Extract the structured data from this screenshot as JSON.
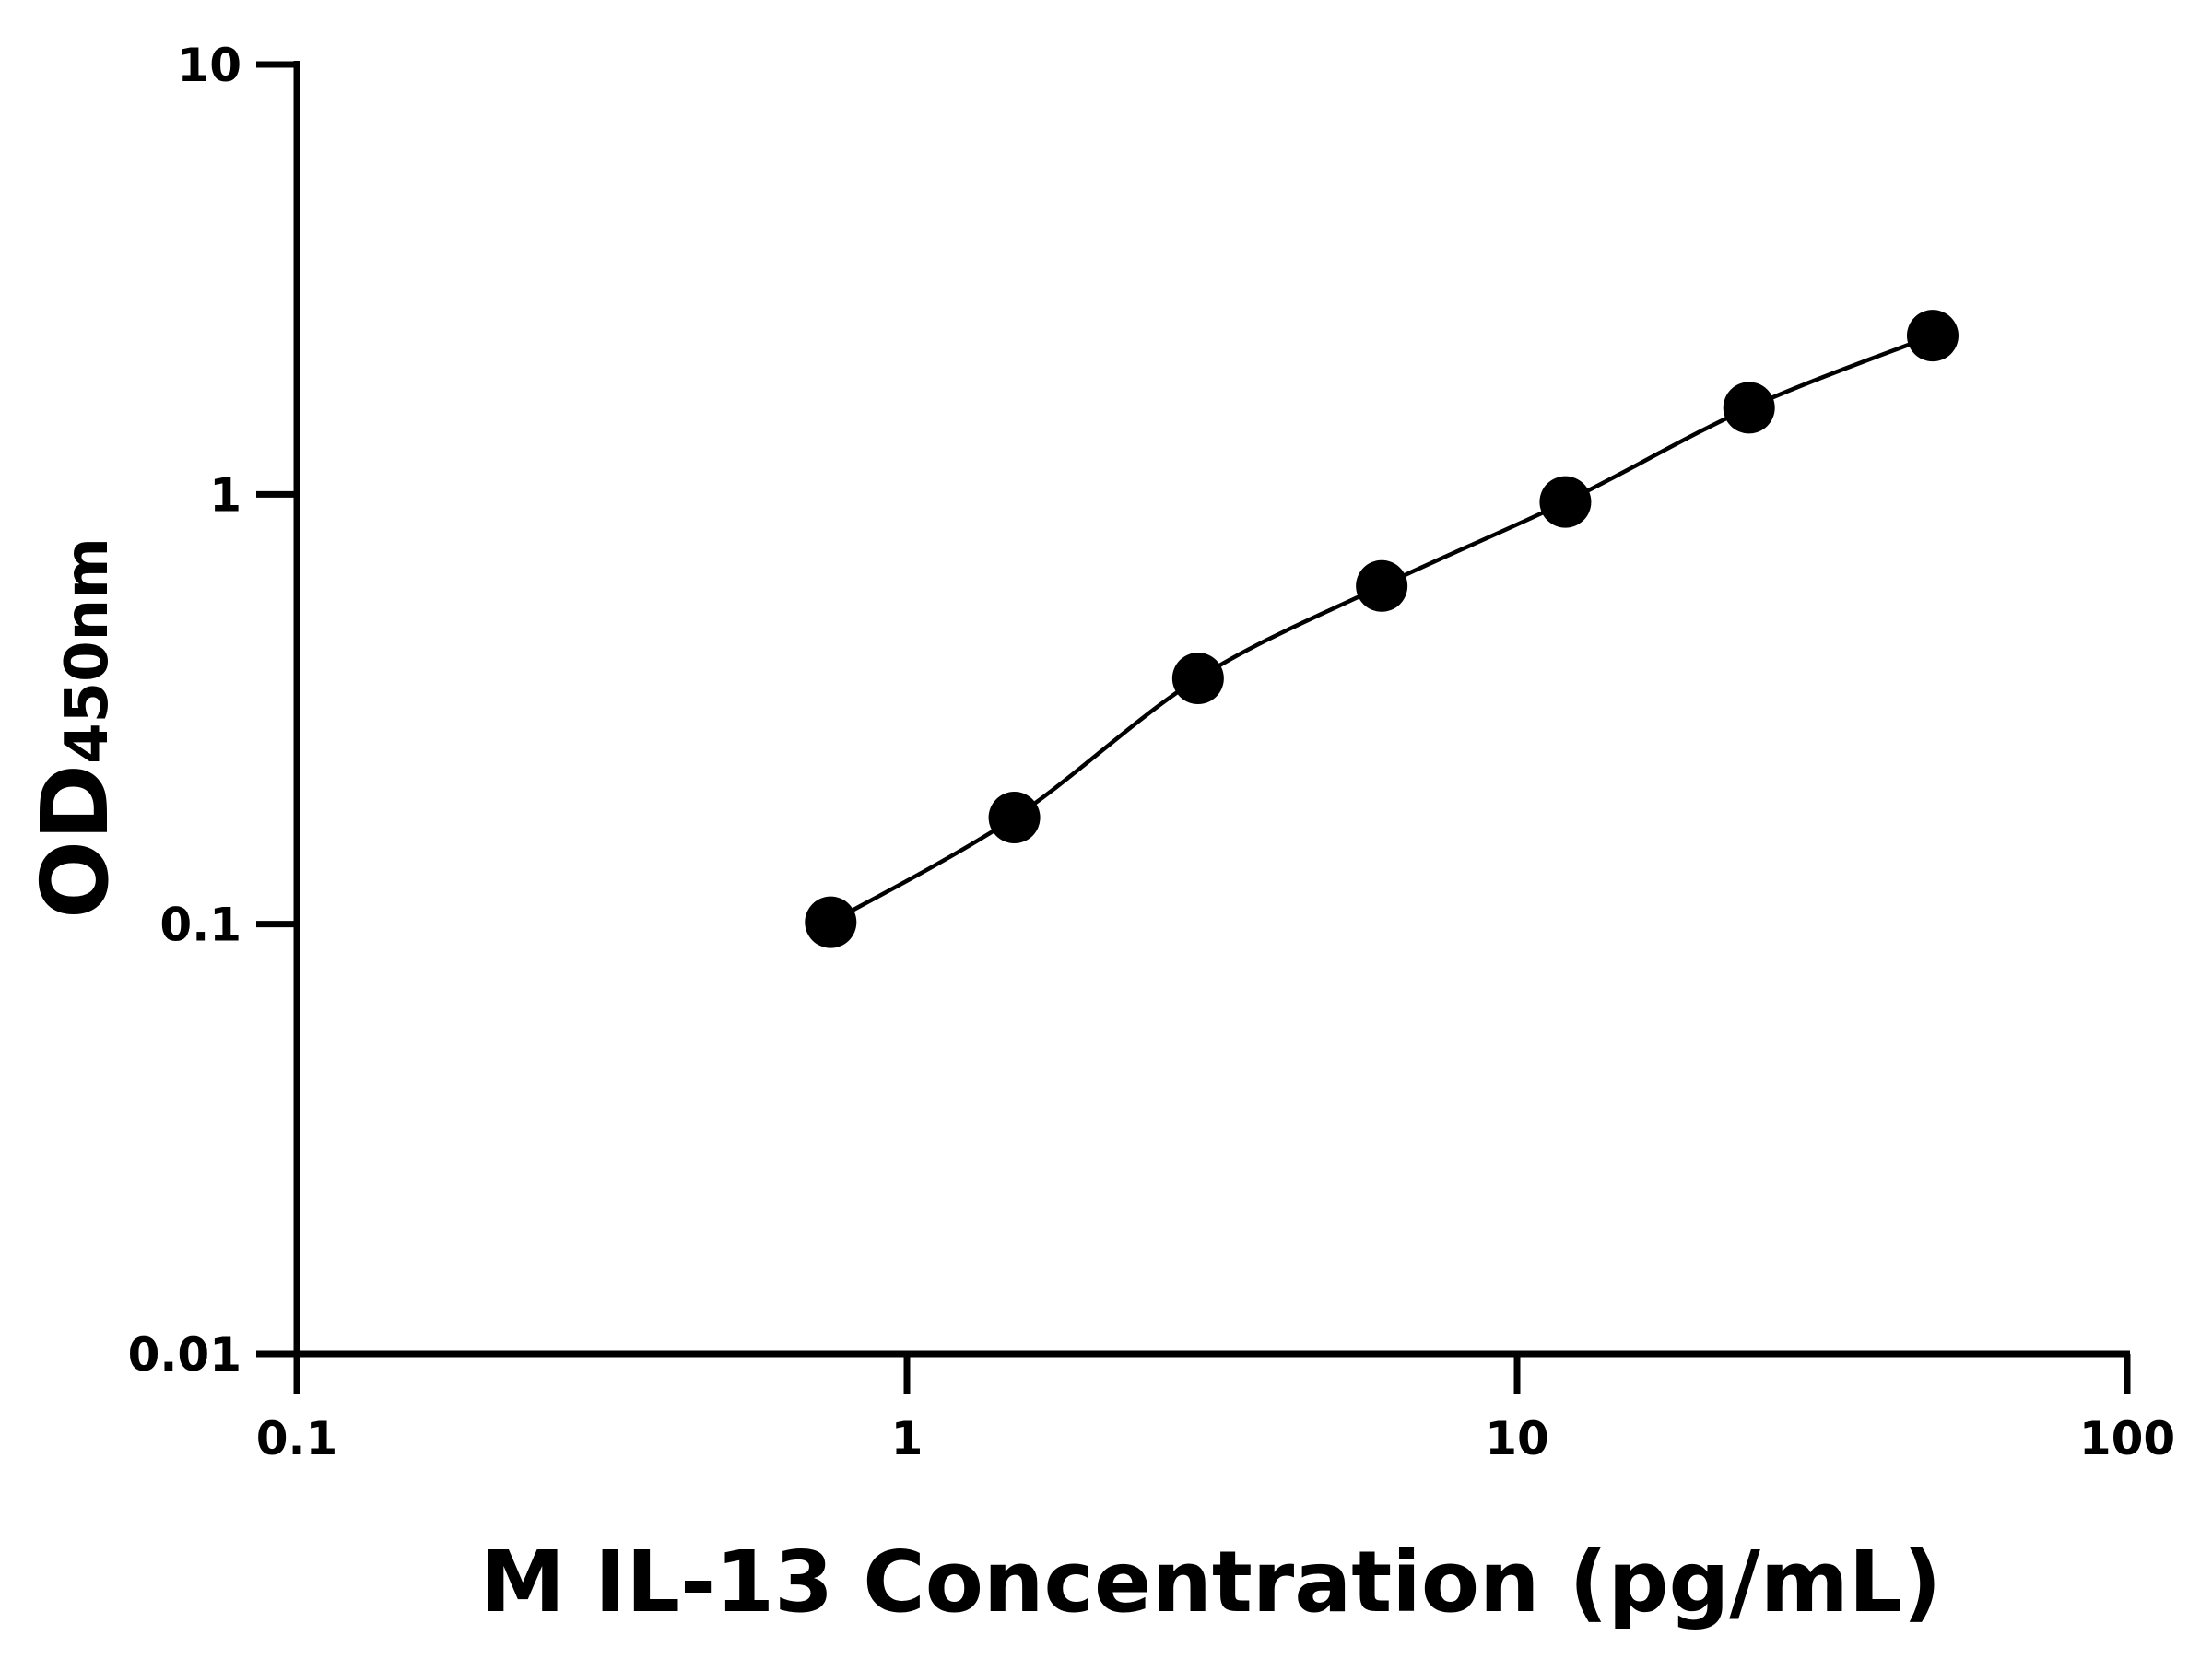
{
  "chart_data": {
    "type": "line",
    "title": "",
    "xlabel": "M IL-13 Concentration (pg/mL)",
    "ylabel": "OD",
    "ylabel_subscript": "450nm",
    "x_scale": "log",
    "y_scale": "log",
    "xlim": [
      0.1,
      100
    ],
    "ylim": [
      0.01,
      10
    ],
    "x_ticks": [
      "0.1",
      "1",
      "10",
      "100"
    ],
    "y_ticks": [
      "0.01",
      "0.1",
      "1",
      "10"
    ],
    "grid": false,
    "legend": "none",
    "series": [
      {
        "x": [
          0.75,
          1.5,
          3,
          6,
          12,
          24,
          48
        ],
        "y": [
          0.101,
          0.177,
          0.373,
          0.612,
          0.96,
          1.59,
          2.34
        ],
        "marker": "circle",
        "fit_line": true,
        "color": "#000000"
      }
    ]
  }
}
